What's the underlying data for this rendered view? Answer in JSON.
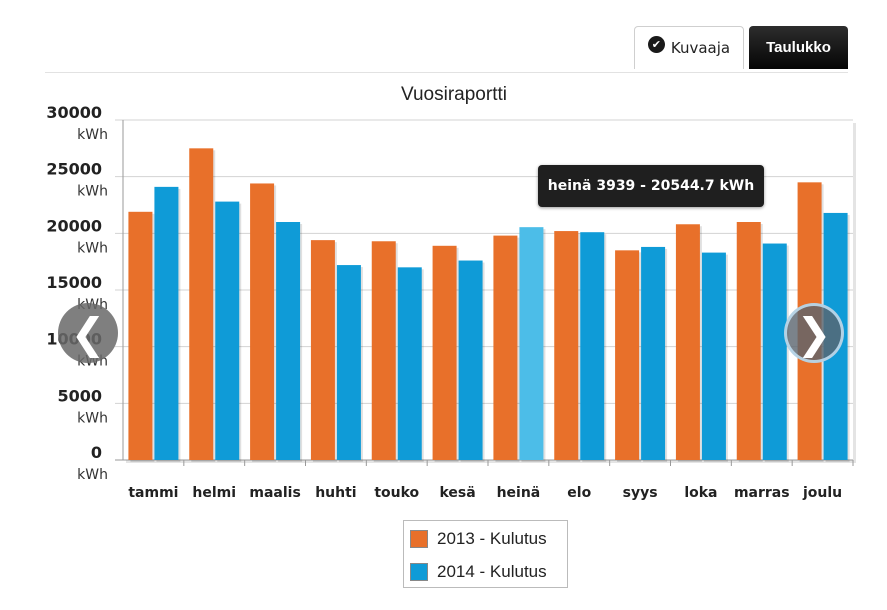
{
  "tabs": {
    "kuvaaja_label": "Kuvaaja",
    "taulukko_label": "Taulukko"
  },
  "icons": {
    "kuvaaja_check": "check-circle-icon",
    "prev": "chevron-left-icon",
    "next": "chevron-right-icon"
  },
  "tooltip": {
    "text": "heinä 3939 - 20544.7 kWh"
  },
  "legend": [
    {
      "label": "2013 - Kulutus",
      "color": "#e8702a"
    },
    {
      "label": "2014 - Kulutus",
      "color": "#0f9bd7"
    }
  ],
  "chart_data": {
    "type": "bar",
    "title": "Vuosiraportti",
    "categories": [
      "tammi",
      "helmi",
      "maalis",
      "huhti",
      "touko",
      "kesä",
      "heinä",
      "elo",
      "syys",
      "loka",
      "marras",
      "joulu"
    ],
    "series": [
      {
        "name": "2013 - Kulutus",
        "color": "#e8702a",
        "values": [
          21900,
          27500,
          24400,
          19400,
          19300,
          18900,
          19800,
          20200,
          18500,
          20800,
          21000,
          24500
        ]
      },
      {
        "name": "2014 - Kulutus",
        "color": "#0f9bd7",
        "values": [
          24100,
          22800,
          21000,
          17200,
          17000,
          17600,
          20544.7,
          20100,
          18800,
          18300,
          19100,
          21800
        ]
      }
    ],
    "highlight": {
      "category": "heinä",
      "series": "2014 - Kulutus",
      "color": "#4cbde8"
    },
    "yticks": [
      "30000",
      "25000",
      "20000",
      "15000",
      "10000",
      "5000",
      "0"
    ],
    "yunit": "kWh",
    "ylim": [
      0,
      30000
    ],
    "grid": true,
    "legend_position": "bottom"
  }
}
